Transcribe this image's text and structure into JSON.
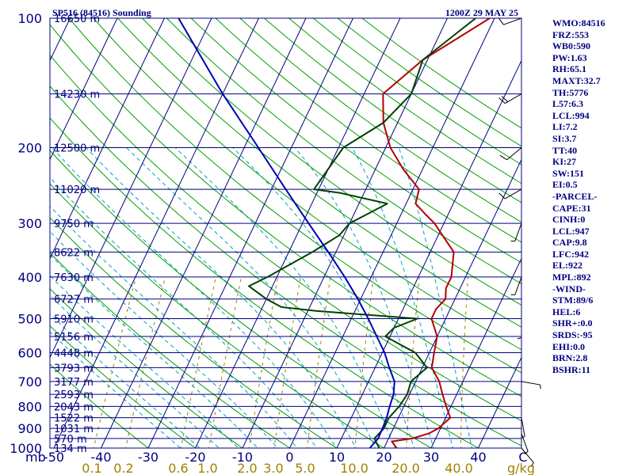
{
  "chart_data": {
    "type": "line",
    "chart_kind": "skew-T log-P sounding",
    "title": "SP516 (84516) Sounding",
    "datetime": "1200Z 29 MAY 25",
    "pressure_axis": {
      "unit_label": "mb",
      "range": [
        1000,
        100
      ],
      "ticks": [
        "100",
        "200",
        "300",
        "400",
        "500",
        "600",
        "700",
        "800",
        "900",
        "1000"
      ]
    },
    "temperature_axis": {
      "range": [
        -50,
        50
      ],
      "ticks": [
        "-50",
        "-40",
        "-30",
        "-20",
        "-10",
        "0",
        "10",
        "20",
        "30",
        "40"
      ],
      "end_label": "C"
    },
    "mixing_ratio_labels": [
      "0.1",
      "0.2",
      "0.6",
      "1.0",
      "2.0",
      "3.0",
      "5.0",
      "10.0",
      "20.0",
      "40.0"
    ],
    "mixing_ratio_unit": "g/kg",
    "height_levels": [
      {
        "p": 100,
        "label": "16650 m"
      },
      {
        "p": 150,
        "label": "14230 m"
      },
      {
        "p": 200,
        "label": "12500 m"
      },
      {
        "p": 250,
        "label": "11020 m"
      },
      {
        "p": 300,
        "label": "9750 m"
      },
      {
        "p": 350,
        "label": "8622 m"
      },
      {
        "p": 400,
        "label": "7630 m"
      },
      {
        "p": 450,
        "label": "6727 m"
      },
      {
        "p": 500,
        "label": "5910 m"
      },
      {
        "p": 550,
        "label": "5156 m"
      },
      {
        "p": 600,
        "label": "4448 m"
      },
      {
        "p": 650,
        "label": "3793 m"
      },
      {
        "p": 700,
        "label": "3177 m"
      },
      {
        "p": 750,
        "label": "2593 m"
      },
      {
        "p": 800,
        "label": "2043 m"
      },
      {
        "p": 850,
        "label": "1522 m"
      },
      {
        "p": 900,
        "label": "1031 m"
      },
      {
        "p": 950,
        "label": "570 m"
      },
      {
        "p": 1000,
        "label": "134 m"
      }
    ],
    "series": [
      {
        "role": "temperature",
        "color": "#b40000",
        "points": [
          [
            1000,
            22.7
          ],
          [
            965,
            21
          ],
          [
            950,
            25
          ],
          [
            925,
            28
          ],
          [
            900,
            29.5
          ],
          [
            850,
            31
          ],
          [
            800,
            29
          ],
          [
            750,
            27
          ],
          [
            700,
            25
          ],
          [
            650,
            22
          ],
          [
            600,
            21
          ],
          [
            550,
            20
          ],
          [
            500,
            17
          ],
          [
            475,
            17
          ],
          [
            450,
            18
          ],
          [
            425,
            17
          ],
          [
            400,
            17
          ],
          [
            350,
            15
          ],
          [
            300,
            8
          ],
          [
            285,
            5
          ],
          [
            270,
            2
          ],
          [
            250,
            1.3
          ],
          [
            225,
            -4
          ],
          [
            200,
            -9
          ],
          [
            175,
            -13
          ],
          [
            150,
            -16
          ],
          [
            125,
            -11
          ],
          [
            100,
            -1
          ]
        ]
      },
      {
        "role": "dewpoint",
        "color": "#004000",
        "points": [
          [
            1000,
            19
          ],
          [
            975,
            18
          ],
          [
            950,
            17
          ],
          [
            925,
            17.5
          ],
          [
            900,
            18
          ],
          [
            850,
            18
          ],
          [
            800,
            19
          ],
          [
            750,
            19.5
          ],
          [
            700,
            19
          ],
          [
            650,
            21
          ],
          [
            600,
            17
          ],
          [
            550,
            9
          ],
          [
            525,
            10
          ],
          [
            500,
            14
          ],
          [
            480,
            -8
          ],
          [
            470,
            -16
          ],
          [
            450,
            -20
          ],
          [
            420,
            -25
          ],
          [
            400,
            -22
          ],
          [
            350,
            -15
          ],
          [
            320,
            -11
          ],
          [
            300,
            -10
          ],
          [
            270,
            -4
          ],
          [
            255,
            -15
          ],
          [
            250,
            -21
          ],
          [
            200,
            -19
          ],
          [
            175,
            -13
          ],
          [
            150,
            -10
          ],
          [
            125,
            -11
          ],
          [
            110,
            -7
          ],
          [
            100,
            -4
          ]
        ]
      },
      {
        "role": "parcel",
        "color": "#0000b4",
        "points": [
          [
            1000,
            17
          ],
          [
            950,
            17.8
          ],
          [
            900,
            17.7
          ],
          [
            850,
            17.5
          ],
          [
            800,
            17
          ],
          [
            750,
            16.6
          ],
          [
            700,
            15.5
          ],
          [
            650,
            13
          ],
          [
            600,
            10.5
          ],
          [
            550,
            7.2
          ],
          [
            500,
            3.6
          ],
          [
            450,
            -0.6
          ],
          [
            400,
            -5.6
          ],
          [
            350,
            -11.6
          ],
          [
            300,
            -18.7
          ],
          [
            250,
            -27
          ],
          [
            200,
            -37
          ],
          [
            150,
            -50
          ],
          [
            100,
            -67
          ]
        ]
      }
    ],
    "winds": [
      {
        "p": 100,
        "dir": 250,
        "spd": 10
      },
      {
        "p": 150,
        "dir": 240,
        "spd": 20
      },
      {
        "p": 200,
        "dir": 230,
        "spd": 10
      },
      {
        "p": 250,
        "dir": 240,
        "spd": 10
      },
      {
        "p": 300,
        "dir": 200,
        "spd": 5
      },
      {
        "p": 400,
        "dir": 200,
        "spd": 5
      },
      {
        "p": 500,
        "dir": 180,
        "spd": 5
      },
      {
        "p": 700,
        "dir": 100,
        "spd": 5
      },
      {
        "p": 850,
        "dir": 170,
        "spd": 5
      },
      {
        "p": 925,
        "dir": 160,
        "spd": 5
      },
      {
        "p": 1000,
        "dir": 140,
        "spd": 5
      }
    ],
    "indices": [
      "WMO:84516",
      "FRZ:553",
      "WB0:590",
      "PW:1.63",
      "RH:65.1",
      "MAXT:32.7",
      "TH:5776",
      "L57:6.3",
      "LCL:994",
      "LI:7.2",
      "SI:3.7",
      "TT:40",
      "KI:27",
      "SW:151",
      "EI:0.5",
      "-PARCEL-",
      "CAPE:31",
      "CINH:0",
      "LCL:947",
      "CAP:9.8",
      "LFC:942",
      "EL:922",
      "MPL:892",
      "-WIND-",
      "STM:89/6",
      "HEL:6",
      "SHR+:0.0",
      "SRDS:-95",
      "EHI:0.0",
      "BRN:2.8",
      "BSHR:11"
    ],
    "colors": {
      "isobar": "#000080",
      "isotherm": "#000080",
      "dry_adiabat": "#00a000",
      "moist_adiabat": "#00a0c0",
      "mixing_ratio": "#a08000",
      "wind": "#000000"
    }
  }
}
